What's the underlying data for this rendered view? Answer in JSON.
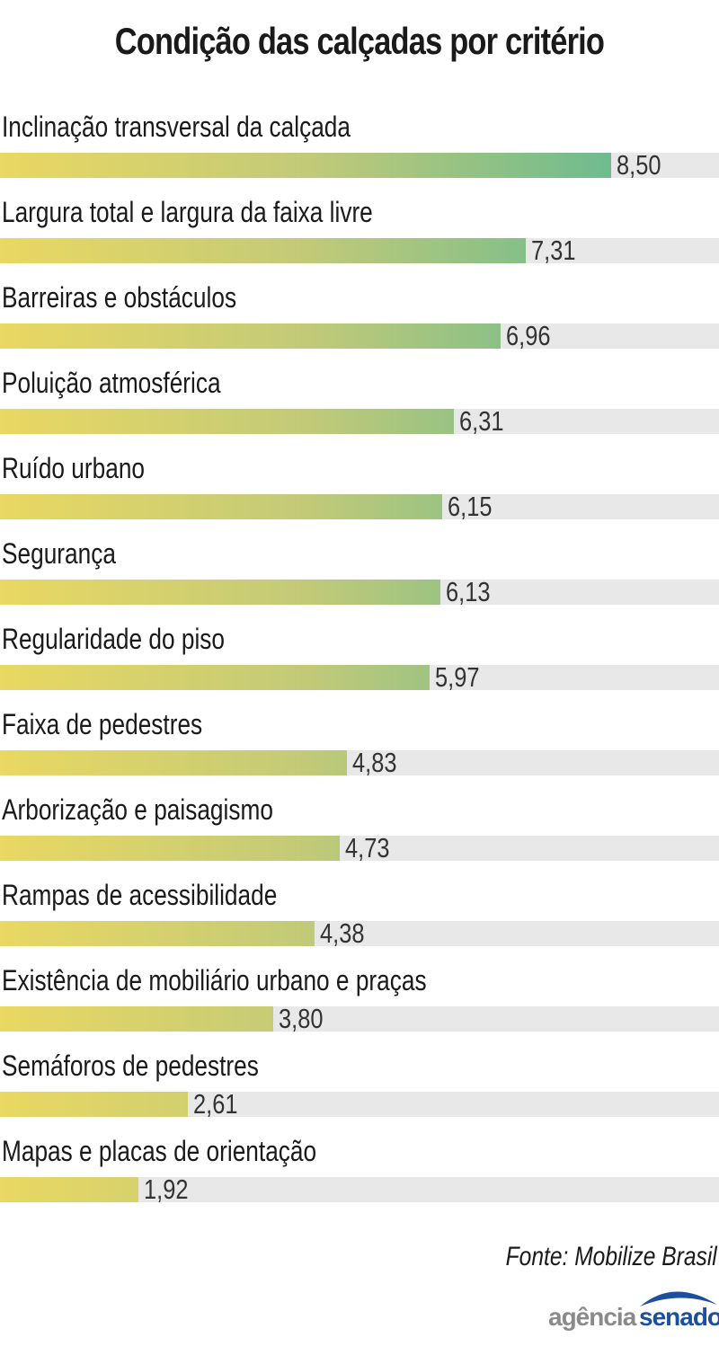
{
  "chart_data": {
    "type": "bar",
    "orientation": "horizontal",
    "title": "Condição das calçadas por critério",
    "categories": [
      "Inclinação transversal da calçada",
      "Largura total e largura da faixa livre",
      "Barreiras e obstáculos",
      "Poluição atmosférica",
      "Ruído urbano",
      "Segurança",
      "Regularidade do piso",
      "Faixa de pedestres",
      "Arborização e paisagismo",
      "Rampas de acessibilidade",
      "Existência de mobiliário urbano e praças",
      "Semáforos de pedestres",
      "Mapas e placas de orientação"
    ],
    "values": [
      8.5,
      7.31,
      6.96,
      6.31,
      6.15,
      6.13,
      5.97,
      4.83,
      4.73,
      4.38,
      3.8,
      2.61,
      1.92
    ],
    "value_labels": [
      "8,50",
      "7,31",
      "6,96",
      "6,31",
      "6,15",
      "6,13",
      "5,97",
      "4,83",
      "4,73",
      "4,38",
      "3,80",
      "2,61",
      "1,92"
    ],
    "xlim": [
      0,
      10
    ],
    "grid": false,
    "colors": {
      "gradient_start": "#e9d862",
      "gradient_end": "#6dbb8f",
      "track": "#e8e8e8"
    }
  },
  "source": "Fonte: Mobilize Brasil",
  "logo": {
    "part1": "agência",
    "part2": "senado"
  }
}
